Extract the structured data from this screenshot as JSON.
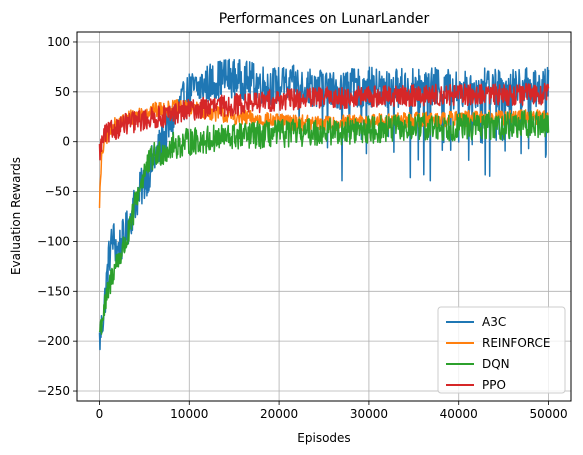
{
  "chart_data": {
    "type": "line",
    "title": "Performances on LunarLander",
    "xlabel": "Episodes",
    "ylabel": "Evaluation Rewards",
    "xlim": [
      -2500,
      52500
    ],
    "ylim": [
      -260,
      110
    ],
    "xticks": [
      0,
      10000,
      20000,
      30000,
      40000,
      50000
    ],
    "yticks": [
      -250,
      -200,
      -150,
      -100,
      -50,
      0,
      50,
      100
    ],
    "grid": true,
    "legend_position": "lower-right",
    "series": [
      {
        "name": "A3C",
        "color": "#1f77b4",
        "x": [
          0,
          500,
          1000,
          1500,
          2000,
          3000,
          4000,
          5000,
          6000,
          7000,
          8000,
          9000,
          10000,
          12000,
          14000,
          16000,
          18000,
          20000,
          22000,
          24000,
          26000,
          28000,
          30000,
          32000,
          34000,
          36000,
          38000,
          40000,
          42000,
          44000,
          46000,
          48000,
          50000
        ],
        "values": [
          -200,
          -170,
          -120,
          -95,
          -110,
          -90,
          -60,
          -40,
          -20,
          0,
          20,
          35,
          50,
          58,
          65,
          62,
          58,
          55,
          57,
          55,
          52,
          53,
          55,
          52,
          55,
          53,
          55,
          52,
          54,
          55,
          53,
          55,
          55
        ],
        "noise": 20
      },
      {
        "name": "REINFORCE",
        "color": "#ff7f0e",
        "x": [
          0,
          300,
          800,
          1500,
          2500,
          3500,
          4500,
          5500,
          6500,
          7500,
          8500,
          10000,
          12000,
          15000,
          20000,
          25000,
          30000,
          35000,
          40000,
          45000,
          50000
        ],
        "values": [
          -60,
          -10,
          5,
          15,
          20,
          25,
          28,
          30,
          32,
          33,
          34,
          33,
          30,
          25,
          20,
          18,
          20,
          22,
          23,
          24,
          25
        ],
        "noise": 8
      },
      {
        "name": "DQN",
        "color": "#2ca02c",
        "x": [
          0,
          500,
          1000,
          1500,
          2000,
          2500,
          3000,
          3500,
          4000,
          5000,
          6000,
          7000,
          8000,
          10000,
          12000,
          15000,
          20000,
          25000,
          30000,
          35000,
          40000,
          45000,
          50000
        ],
        "values": [
          -190,
          -170,
          -150,
          -130,
          -120,
          -110,
          -100,
          -85,
          -60,
          -30,
          -15,
          -10,
          -5,
          0,
          2,
          5,
          8,
          10,
          12,
          14,
          15,
          16,
          18
        ],
        "noise": 14
      },
      {
        "name": "PPO",
        "color": "#d62728",
        "x": [
          0,
          500,
          1500,
          3000,
          5000,
          7000,
          9000,
          11000,
          13000,
          15000,
          18000,
          20000,
          25000,
          30000,
          35000,
          40000,
          45000,
          50000
        ],
        "values": [
          -10,
          5,
          12,
          18,
          22,
          25,
          30,
          33,
          35,
          37,
          40,
          42,
          44,
          45,
          46,
          47,
          47,
          48
        ],
        "noise": 11
      }
    ]
  }
}
